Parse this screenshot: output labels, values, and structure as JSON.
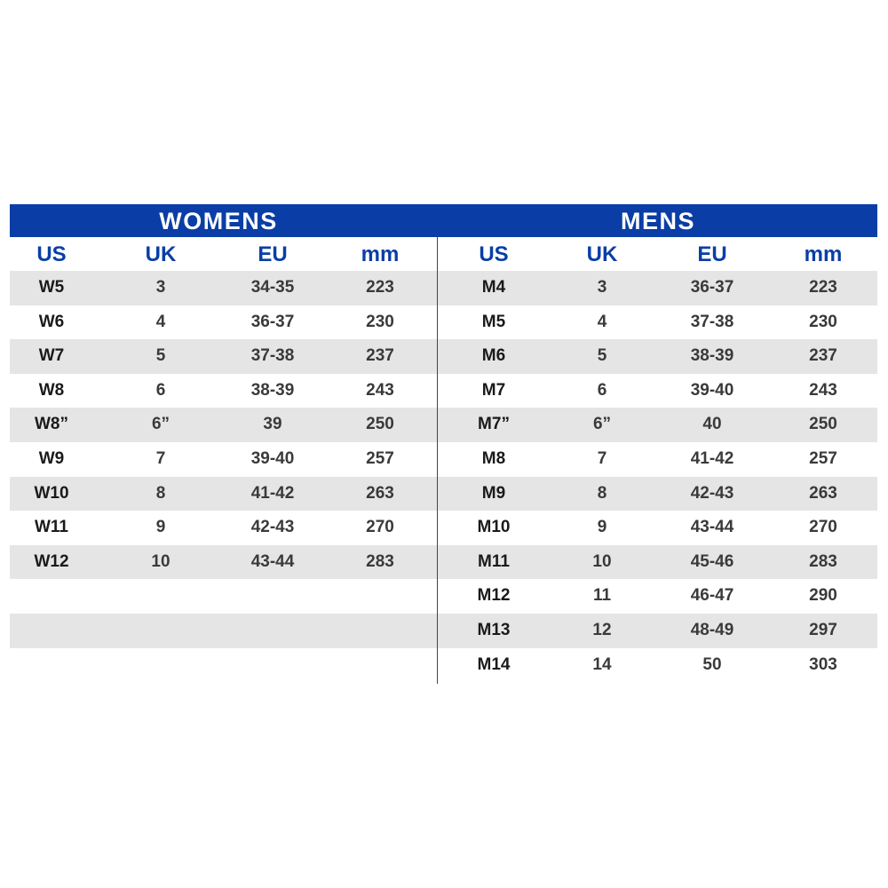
{
  "womens": {
    "title": "WOMENS",
    "columns": [
      "US",
      "UK",
      "EU",
      "mm"
    ],
    "rows": [
      [
        "W5",
        "3",
        "34-35",
        "223"
      ],
      [
        "W6",
        "4",
        "36-37",
        "230"
      ],
      [
        "W7",
        "5",
        "37-38",
        "237"
      ],
      [
        "W8",
        "6",
        "38-39",
        "243"
      ],
      [
        "W8”",
        "6”",
        "39",
        "250"
      ],
      [
        "W9",
        "7",
        "39-40",
        "257"
      ],
      [
        "W10",
        "8",
        "41-42",
        "263"
      ],
      [
        "W11",
        "9",
        "42-43",
        "270"
      ],
      [
        "W12",
        "10",
        "43-44",
        "283"
      ]
    ]
  },
  "mens": {
    "title": "MENS",
    "columns": [
      "US",
      "UK",
      "EU",
      "mm"
    ],
    "rows": [
      [
        "M4",
        "3",
        "36-37",
        "223"
      ],
      [
        "M5",
        "4",
        "37-38",
        "230"
      ],
      [
        "M6",
        "5",
        "38-39",
        "237"
      ],
      [
        "M7",
        "6",
        "39-40",
        "243"
      ],
      [
        "M7”",
        "6”",
        "40",
        "250"
      ],
      [
        "M8",
        "7",
        "41-42",
        "257"
      ],
      [
        "M9",
        "8",
        "42-43",
        "263"
      ],
      [
        "M10",
        "9",
        "43-44",
        "270"
      ],
      [
        "M11",
        "10",
        "45-46",
        "283"
      ],
      [
        "M12",
        "11",
        "46-47",
        "290"
      ],
      [
        "M13",
        "12",
        "48-49",
        "297"
      ],
      [
        "M14",
        "14",
        "50",
        "303"
      ]
    ]
  },
  "colors": {
    "banner": "#0a3ea6",
    "header_text": "#0a3ea6",
    "stripe": "#e6e5e6"
  }
}
